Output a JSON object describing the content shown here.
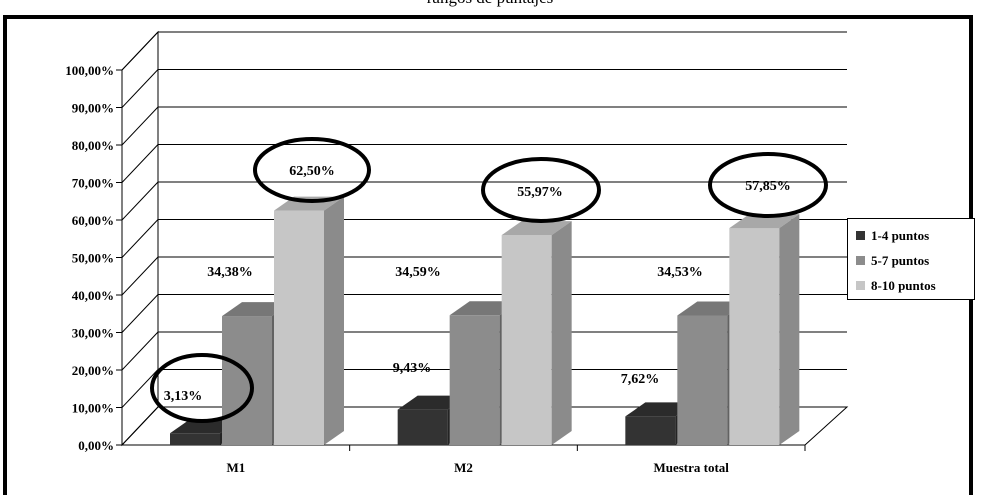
{
  "chart_data": {
    "type": "bar",
    "title": "rangos de puntajes",
    "categories": [
      "M1",
      "M2",
      "Muestra total"
    ],
    "series": [
      {
        "name": "1-4 puntos",
        "values": [
          3.13,
          9.43,
          7.62
        ],
        "labels": [
          "3,13%",
          "9,43%",
          "7,62%"
        ]
      },
      {
        "name": "5-7 puntos",
        "values": [
          34.38,
          34.59,
          34.53
        ],
        "labels": [
          "34,38%",
          "34,59%",
          "34,53%"
        ]
      },
      {
        "name": "8-10 puntos",
        "values": [
          62.5,
          55.97,
          57.85
        ],
        "labels": [
          "62,50%",
          "55,97%",
          "57,85%"
        ]
      }
    ],
    "yticks": [
      "0,00%",
      "10,00%",
      "20,00%",
      "30,00%",
      "40,00%",
      "50,00%",
      "60,00%",
      "70,00%",
      "80,00%",
      "90,00%",
      "100,00%"
    ],
    "ylim": [
      0,
      100
    ],
    "colors": {
      "1-4 puntos": "#333333",
      "5-7 puntos": "#8c8c8c",
      "8-10 puntos": "#c6c6c6"
    },
    "legend_position": "right",
    "grid": true,
    "highlighted_labels": [
      "3,13%",
      "62,50%",
      "55,97%",
      "57,85%"
    ]
  }
}
